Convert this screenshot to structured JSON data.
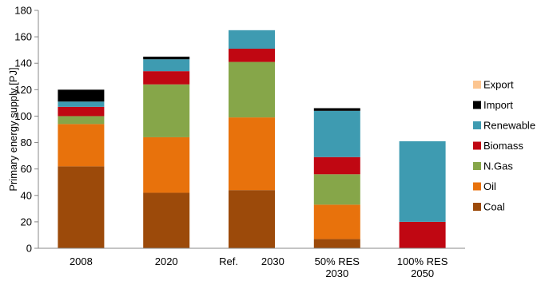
{
  "chart_data": {
    "type": "bar",
    "stacked": true,
    "ylabel": "Primary energy supply [PJ]",
    "xlabel": "",
    "ylim": [
      0,
      180
    ],
    "yticks": [
      0,
      20,
      40,
      60,
      80,
      100,
      120,
      140,
      160,
      180
    ],
    "grid": false,
    "legend_position": "right",
    "categories": [
      {
        "id": "2008",
        "lines": [
          "2008"
        ]
      },
      {
        "id": "2020",
        "lines": [
          "2020"
        ]
      },
      {
        "id": "ref-2030",
        "lines": [
          "Ref.        2030"
        ]
      },
      {
        "id": "50-res-2030",
        "lines": [
          "50% RES",
          "2030"
        ]
      },
      {
        "id": "100-res-2050",
        "lines": [
          "100% RES",
          "2050"
        ]
      }
    ],
    "series": [
      {
        "name": "Coal",
        "key": "coal",
        "color": "#9c4a0a",
        "values": [
          62,
          42,
          44,
          7,
          0
        ]
      },
      {
        "name": "Oil",
        "key": "oil",
        "color": "#e8720c",
        "values": [
          32,
          42,
          55,
          26,
          0
        ]
      },
      {
        "name": "N.Gas",
        "key": "ngas",
        "color": "#86a649",
        "values": [
          6,
          40,
          42,
          23,
          0
        ]
      },
      {
        "name": "Biomass",
        "key": "biomass",
        "color": "#c00712",
        "values": [
          7,
          10,
          10,
          13,
          20
        ]
      },
      {
        "name": "Renewable",
        "key": "renewable",
        "color": "#3e9bb1",
        "values": [
          4,
          9,
          14,
          35,
          61
        ]
      },
      {
        "name": "Import",
        "key": "import",
        "color": "#000000",
        "values": [
          9,
          2,
          0,
          2,
          0
        ]
      },
      {
        "name": "Export",
        "key": "export",
        "color": "#fcc590",
        "values": [
          0,
          0,
          0,
          0,
          0
        ]
      }
    ]
  }
}
